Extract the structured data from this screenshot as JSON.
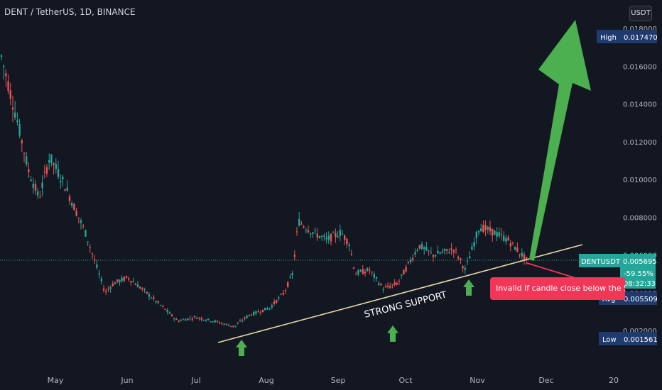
{
  "header": {
    "symbol_title": "DENT / TetherUS, 1D, BINANCE",
    "currency_button": "USDT"
  },
  "annotations": {
    "support_label": "STRONG SUPPORT",
    "invalid_note": "Invalid If candle close below the Su"
  },
  "price_labels": {
    "high": {
      "tag": "High",
      "value": "0.017470",
      "color": "#1e3a6e"
    },
    "current": {
      "tag": "DENTUSDT",
      "value": "0.005695",
      "change": "-59.55%",
      "countdown": "08:32:33",
      "color": "#26a69a"
    },
    "avg": {
      "tag": "Avg",
      "value": "0.005509",
      "color": "#1e3a6e"
    },
    "low": {
      "tag": "Low",
      "value": "0.001561",
      "color": "#1e3a6e"
    }
  },
  "colors": {
    "background": "#131722",
    "up": "#26a69a",
    "down": "#ef5350",
    "arrow": "#4caf50",
    "support_line": "#e8d8a8",
    "note": "#f23658"
  },
  "icons": [
    "up-arrow-icon",
    "target-arrow-icon"
  ],
  "chart_data": {
    "type": "candlestick",
    "x_ticks": [
      "May",
      "Jun",
      "Jul",
      "Aug",
      "Sep",
      "Oct",
      "Nov",
      "Dec",
      "20"
    ],
    "y_ticks": [
      "0.018000",
      "0.016000",
      "0.014000",
      "0.012000",
      "0.010000",
      "0.008000",
      "0.006000",
      "0.004000",
      "0.002000"
    ],
    "ylim": [
      0.0004,
      0.0196
    ],
    "grid": false,
    "close_series_approx": [
      {
        "month": "Apr",
        "close": 0.016
      },
      {
        "month": "May",
        "close": 0.009
      },
      {
        "month": "Jun",
        "close": 0.004
      },
      {
        "month": "Jul",
        "close": 0.0025
      },
      {
        "month": "Aug",
        "close": 0.003
      },
      {
        "month": "Aug-mid",
        "close": 0.007
      },
      {
        "month": "Sep",
        "close": 0.0055
      },
      {
        "month": "Oct",
        "close": 0.0055
      },
      {
        "month": "Nov",
        "close": 0.007
      },
      {
        "month": "Nov-end",
        "close": 0.0057
      }
    ]
  }
}
